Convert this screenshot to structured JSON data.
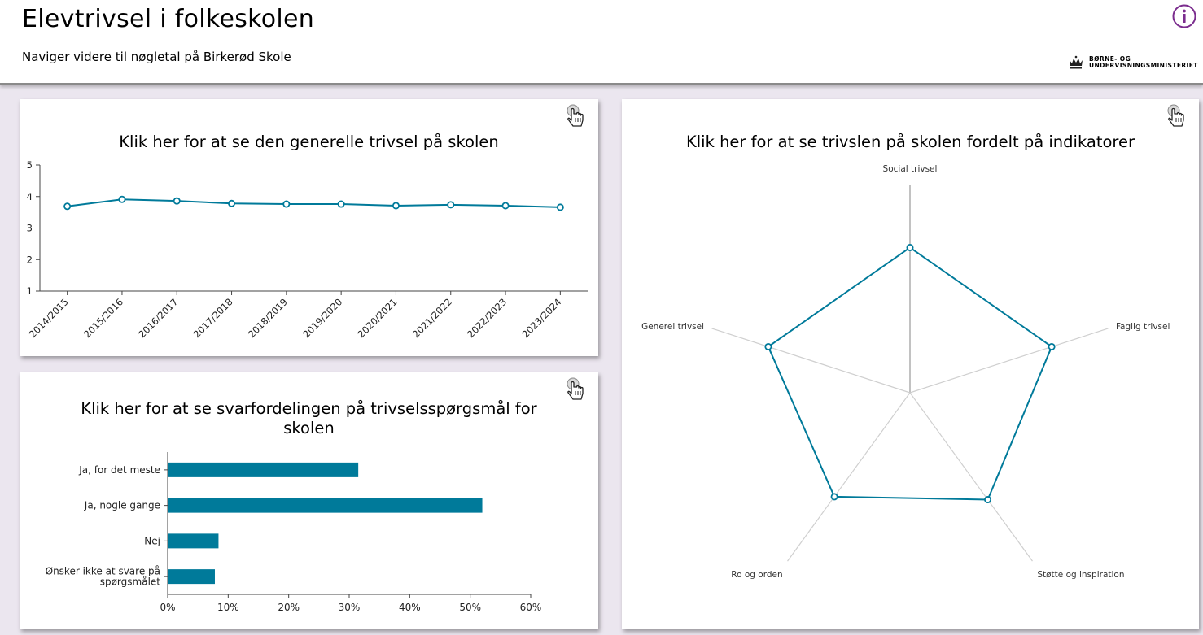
{
  "header": {
    "title": "Elevtrivsel i folkeskolen",
    "subtitle": "Naviger videre til nøgletal på Birkerød Skole",
    "logo_line1": "BØRNE- OG",
    "logo_line2": "UNDERVISNINGSMINISTERIET"
  },
  "colors": {
    "series": "#007a9a",
    "accent": "#7b2d8e",
    "grid": "#c8c8c8"
  },
  "cards": {
    "general": {
      "title": "Klik her for at se den generelle trivsel på skolen"
    },
    "answers": {
      "title_line1": "Klik her for at se svarfordelingen på trivselsspørgsmål for",
      "title_line2": "skolen"
    },
    "indicators": {
      "title": "Klik her for at se trivslen på skolen fordelt på indikatorer"
    }
  },
  "chart_data": [
    {
      "type": "line",
      "title": "Klik her for at se den generelle trivsel på skolen",
      "x": [
        "2014/2015",
        "2015/2016",
        "2016/2017",
        "2017/2018",
        "2018/2019",
        "2019/2020",
        "2020/2021",
        "2021/2022",
        "2022/2023",
        "2023/2024"
      ],
      "values": [
        3.69,
        3.91,
        3.86,
        3.78,
        3.76,
        3.76,
        3.71,
        3.74,
        3.71,
        3.66
      ],
      "ylim": [
        1,
        5
      ],
      "yticks": [
        "1",
        "2",
        "3",
        "4",
        "5"
      ]
    },
    {
      "type": "bar",
      "orientation": "horizontal",
      "title": "Klik her for at se svarfordelingen på trivselsspørgsmål for skolen",
      "categories": [
        "Ja, for det meste",
        "Ja, nogle gange",
        "Nej",
        "Ønsker ikke at svare på spørgsmålet"
      ],
      "category_lines": [
        [
          "Ja, for det meste"
        ],
        [
          "Ja, nogle gange"
        ],
        [
          "Nej"
        ],
        [
          "Ønsker ikke at svare på",
          "spørgsmålet"
        ]
      ],
      "values": [
        31.5,
        52.0,
        8.4,
        7.8
      ],
      "xlim": [
        0,
        60
      ],
      "xticks": [
        "0%",
        "10%",
        "20%",
        "30%",
        "40%",
        "50%",
        "60%"
      ]
    },
    {
      "type": "radar",
      "title": "Klik her for at se trivslen på skolen fordelt på indikatorer",
      "axes": [
        "Social trivsel",
        "Faglig trivsel",
        "Støtte og inspiration",
        "Ro og orden",
        "Generel trivsel"
      ],
      "values": [
        3.79,
        3.86,
        3.54,
        3.47,
        3.86
      ],
      "rlim": [
        1,
        5
      ]
    }
  ]
}
